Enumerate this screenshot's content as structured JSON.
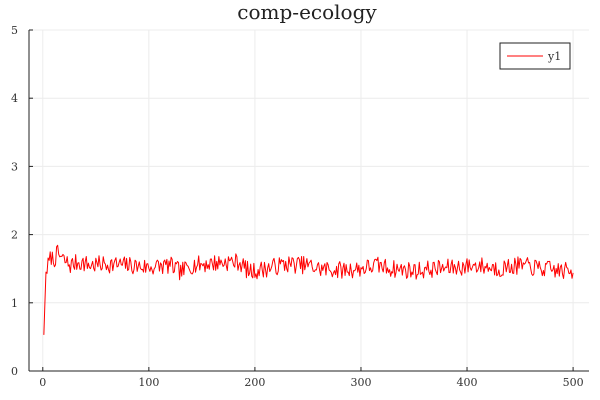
{
  "chart_data": {
    "type": "line",
    "title": "comp-ecology",
    "xlabel": "",
    "ylabel": "",
    "xlim": [
      -13,
      515
    ],
    "ylim": [
      0,
      5
    ],
    "xticks": [
      0,
      100,
      200,
      300,
      400,
      500
    ],
    "yticks": [
      0,
      1,
      2,
      3,
      4,
      5
    ],
    "grid": true,
    "legend": "top-right",
    "series": [
      {
        "name": "y1",
        "color": "#ff0000",
        "x_start": 1,
        "x_step": 1,
        "anchors": [
          [
            1,
            0.53
          ],
          [
            2,
            1.0
          ],
          [
            3,
            1.45
          ],
          [
            5,
            1.55
          ],
          [
            8,
            1.68
          ],
          [
            10,
            1.62
          ],
          [
            14,
            1.72
          ],
          [
            20,
            1.62
          ],
          [
            26,
            1.55
          ],
          [
            34,
            1.6
          ],
          [
            45,
            1.55
          ],
          [
            60,
            1.57
          ],
          [
            80,
            1.55
          ],
          [
            100,
            1.52
          ],
          [
            120,
            1.55
          ],
          [
            130,
            1.45
          ],
          [
            140,
            1.55
          ],
          [
            160,
            1.58
          ],
          [
            175,
            1.6
          ],
          [
            185,
            1.6
          ],
          [
            195,
            1.45
          ],
          [
            210,
            1.5
          ],
          [
            230,
            1.57
          ],
          [
            250,
            1.55
          ],
          [
            260,
            1.5
          ],
          [
            280,
            1.48
          ],
          [
            300,
            1.5
          ],
          [
            315,
            1.55
          ],
          [
            330,
            1.5
          ],
          [
            350,
            1.47
          ],
          [
            370,
            1.5
          ],
          [
            390,
            1.52
          ],
          [
            410,
            1.55
          ],
          [
            430,
            1.5
          ],
          [
            450,
            1.55
          ],
          [
            470,
            1.5
          ],
          [
            490,
            1.47
          ],
          [
            500,
            1.45
          ]
        ],
        "noise_amplitude": 0.13,
        "noise_seed": 7
      }
    ]
  }
}
